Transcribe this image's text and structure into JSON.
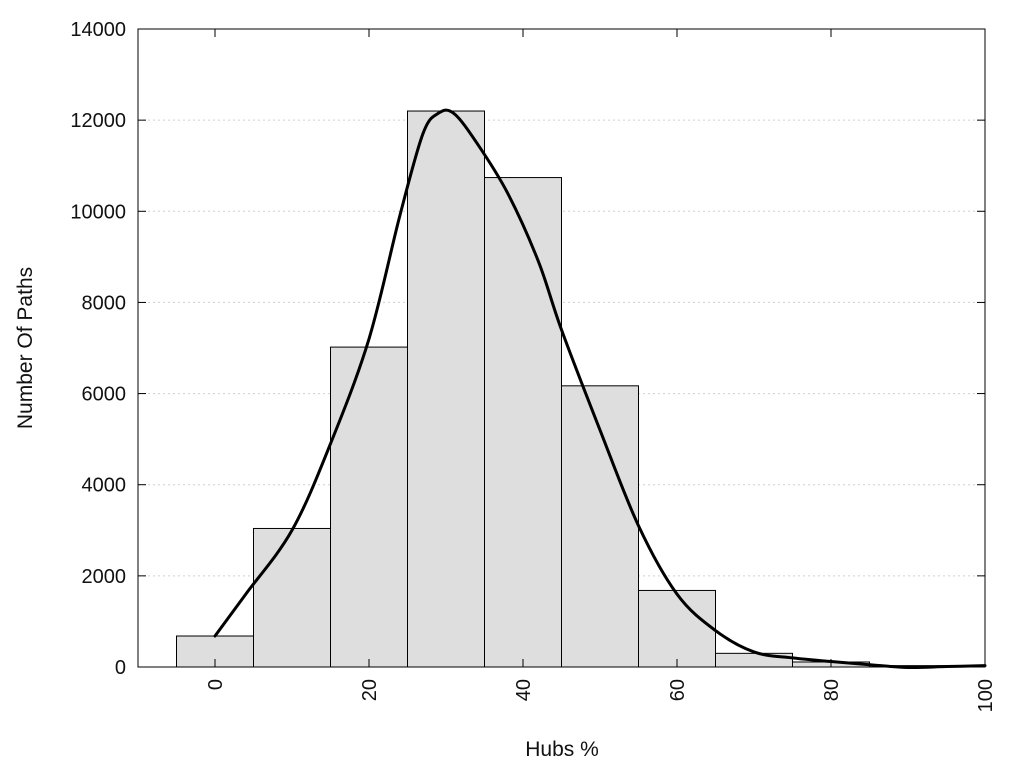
{
  "chart_data": {
    "type": "bar",
    "title": "",
    "xlabel": "Hubs %",
    "ylabel": "Number Of Paths",
    "xlim": [
      -10,
      100
    ],
    "ylim": [
      0,
      14000
    ],
    "x_ticks": [
      0,
      20,
      40,
      60,
      80,
      100
    ],
    "y_ticks": [
      0,
      2000,
      4000,
      6000,
      8000,
      10000,
      12000,
      14000
    ],
    "grid": "horizontal dotted",
    "bin_width": 10,
    "bars": {
      "x": [
        0,
        10,
        20,
        30,
        40,
        50,
        60,
        70,
        80,
        90
      ],
      "values": [
        680,
        3040,
        7020,
        12200,
        10740,
        6170,
        1680,
        300,
        110,
        30
      ]
    },
    "curve": {
      "x": [
        0,
        4,
        10,
        15,
        20,
        24,
        27,
        29,
        31,
        34,
        38,
        42,
        45,
        50,
        55,
        60,
        65,
        70,
        75,
        80,
        85,
        90,
        95,
        100
      ],
      "y": [
        680,
        1600,
        3000,
        4900,
        7200,
        9900,
        11700,
        12150,
        12150,
        11500,
        10400,
        8900,
        7400,
        5200,
        3100,
        1600,
        800,
        330,
        200,
        120,
        50,
        -10,
        10,
        30
      ]
    },
    "colors": {
      "bar_fill": "#dedede",
      "bar_stroke": "#000000",
      "curve": "#000000"
    }
  }
}
